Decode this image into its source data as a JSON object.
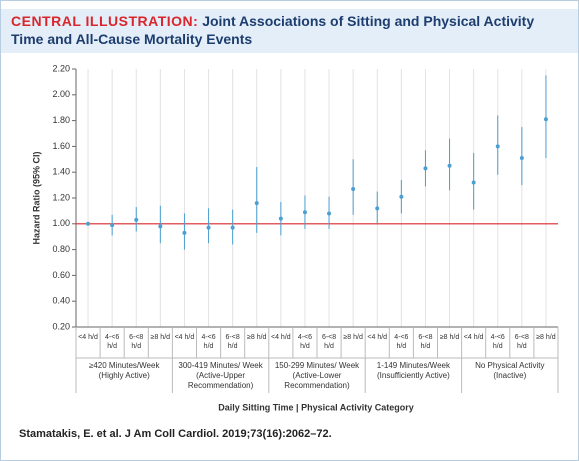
{
  "header_label": "CENTRAL ILLUSTRATION:",
  "chart_data": {
    "type": "errorbar",
    "title": "Joint Associations of Sitting and Physical Activity Time and All-Cause Mortality Events",
    "y_label": "Hazard Ratio (95% CI)",
    "x_label": "Daily Sitting Time | Physical Activity Category",
    "categories": [
      "<4 h/d",
      "4-<6 h/d",
      "6-<8 h/d",
      "≥8 h/d",
      "<4 h/d",
      "4-<6 h/d",
      "6-<8 h/d",
      "≥8 h/d",
      "<4 h/d",
      "4-<6 h/d",
      "6-<8 h/d",
      "≥8 h/d",
      "<4 h/d",
      "4-<6 h/d",
      "6-<8 h/d",
      "≥8 h/d",
      "<4 h/d",
      "4-<6 h/d",
      "6-<8 h/d",
      "≥8 h/d"
    ],
    "groups": [
      "≥420 Minutes/Week (Highly Active)",
      "300-419 Minutes/ Week (Active-Upper Recommendation)",
      "150-299 Minutes/ Week (Active-Lower Recommendation)",
      "1-149 Minutes/Week (Insufficiently Active)",
      "No Physical Activity (Inactive)"
    ],
    "values": [
      1.0,
      0.99,
      1.03,
      0.98,
      0.93,
      0.97,
      0.97,
      1.16,
      1.04,
      1.09,
      1.08,
      1.27,
      1.12,
      1.21,
      1.43,
      1.45,
      1.32,
      1.6,
      1.51,
      1.81
    ],
    "lower": [
      null,
      0.91,
      0.94,
      0.85,
      0.8,
      0.85,
      0.84,
      0.93,
      0.91,
      0.96,
      0.96,
      1.07,
      1.0,
      1.08,
      1.29,
      1.26,
      1.11,
      1.38,
      1.3,
      1.51
    ],
    "upper": [
      null,
      1.07,
      1.13,
      1.14,
      1.08,
      1.12,
      1.11,
      1.44,
      1.17,
      1.22,
      1.21,
      1.5,
      1.25,
      1.34,
      1.57,
      1.66,
      1.55,
      1.84,
      1.75,
      2.15
    ],
    "color": "#4b9fd1",
    "reference_line": {
      "value": 1.0,
      "color": "#d9262c"
    },
    "ylim": [
      0.2,
      2.2
    ],
    "yticks": [
      {
        "value": 0.2,
        "label": "0.20"
      },
      {
        "value": 0.4,
        "label": "0.40"
      },
      {
        "value": 0.6,
        "label": "0.60"
      },
      {
        "value": 0.8,
        "label": "0.80"
      },
      {
        "value": 1.0,
        "label": "1.00"
      },
      {
        "value": 1.2,
        "label": "1.20"
      },
      {
        "value": 1.4,
        "label": "1.40"
      },
      {
        "value": 1.6,
        "label": "1.60"
      },
      {
        "value": 1.8,
        "label": "1.80"
      },
      {
        "value": 2.0,
        "label": "2.00"
      },
      {
        "value": 2.2,
        "label": "2.20"
      }
    ],
    "grid": true
  },
  "citation": "Stamatakis, E. et al. J Am Coll Cardiol. 2019;73(16):2062–72."
}
